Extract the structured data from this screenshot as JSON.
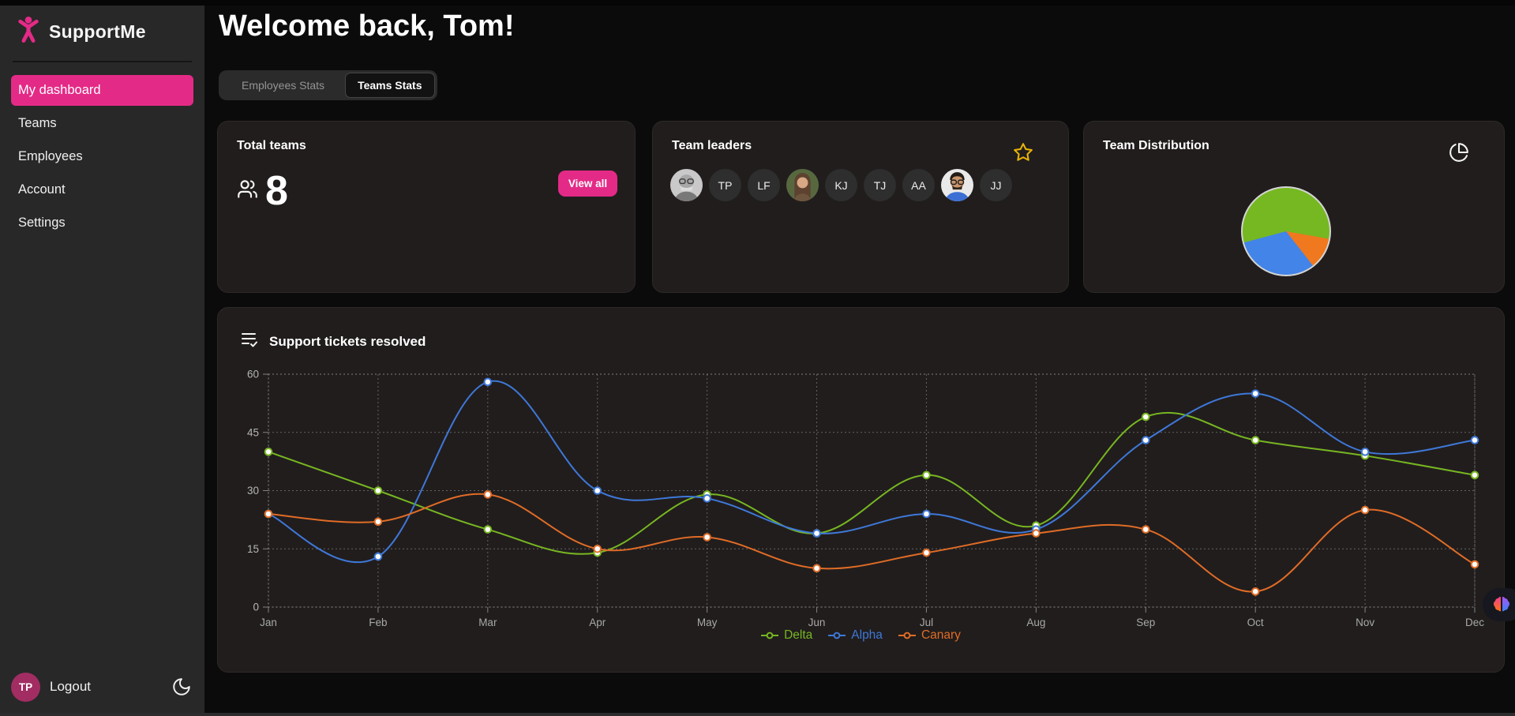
{
  "colors": {
    "accent_pink": "#e42a87",
    "avatar_pink": "#a12d63",
    "star_gold": "#eab308",
    "sidebar_bg": "#282828",
    "card_bg": "#211d1d",
    "page_bg": "#0c0b0b"
  },
  "sidebar": {
    "logo_text": "SupportMe",
    "logo_icon": "accessibility-person-icon",
    "items": [
      {
        "label": "My dashboard",
        "active": true
      },
      {
        "label": "Teams",
        "active": false
      },
      {
        "label": "Employees",
        "active": false
      },
      {
        "label": "Account",
        "active": false
      },
      {
        "label": "Settings",
        "active": false
      }
    ],
    "footer": {
      "avatar_initials": "TP",
      "logout_label": "Logout",
      "theme_icon": "moon"
    }
  },
  "header": {
    "title": "Welcome back, Tom!"
  },
  "tabs": [
    {
      "label": "Employees Stats",
      "active": false
    },
    {
      "label": "Teams Stats",
      "active": true
    }
  ],
  "cards": {
    "total_teams": {
      "title": "Total teams",
      "value": "8",
      "icon": "users",
      "button_label": "View all"
    },
    "team_leaders": {
      "title": "Team leaders",
      "corner_icon": "star",
      "avatars": [
        {
          "type": "photo",
          "variant": "photo1",
          "desc": "gray-haired man with glasses"
        },
        {
          "type": "initials",
          "text": "TP"
        },
        {
          "type": "initials",
          "text": "LF"
        },
        {
          "type": "photo",
          "variant": "photo2",
          "desc": "woman with long brown hair"
        },
        {
          "type": "initials",
          "text": "KJ"
        },
        {
          "type": "initials",
          "text": "TJ"
        },
        {
          "type": "initials",
          "text": "AA"
        },
        {
          "type": "photo",
          "variant": "photo3",
          "desc": "man with glasses and blue shirt"
        },
        {
          "type": "initials",
          "text": "JJ"
        }
      ]
    },
    "team_distribution": {
      "title": "Team Distribution",
      "corner_icon": "pie-chart"
    }
  },
  "chart_data": [
    {
      "type": "pie",
      "title": "Team Distribution",
      "start_deg": -105,
      "segments": [
        {
          "color": "#76b821",
          "deg": 205,
          "percent": 57
        },
        {
          "color": "#f0781e",
          "deg": 42,
          "percent": 12
        },
        {
          "color": "#4284e8",
          "deg": 113,
          "percent": 31
        }
      ]
    },
    {
      "type": "line",
      "title": "Support tickets resolved",
      "title_icon": "list-checks",
      "x": [
        "Jan",
        "Feb",
        "Mar",
        "Apr",
        "May",
        "Jun",
        "Jul",
        "Aug",
        "Sep",
        "Oct",
        "Nov",
        "Dec"
      ],
      "ylim": [
        0,
        60
      ],
      "yticks": [
        0,
        15,
        30,
        45,
        60
      ],
      "grid": "dashed",
      "legend_position": "bottom",
      "point_fill": "#fdfdfd",
      "series": [
        {
          "name": "Delta",
          "color": "#77b621",
          "values": [
            40,
            30,
            20,
            14,
            29,
            19,
            34,
            21,
            49,
            43,
            39,
            34
          ]
        },
        {
          "name": "Alpha",
          "color": "#3e78d8",
          "values": [
            24,
            13,
            58,
            30,
            28,
            19,
            24,
            20,
            43,
            55,
            40,
            43
          ]
        },
        {
          "name": "Canary",
          "color": "#e06c26",
          "values": [
            24,
            22,
            29,
            15,
            18,
            10,
            14,
            19,
            20,
            4,
            25,
            11
          ]
        }
      ]
    }
  ],
  "assistant_fab_icon": "brain"
}
